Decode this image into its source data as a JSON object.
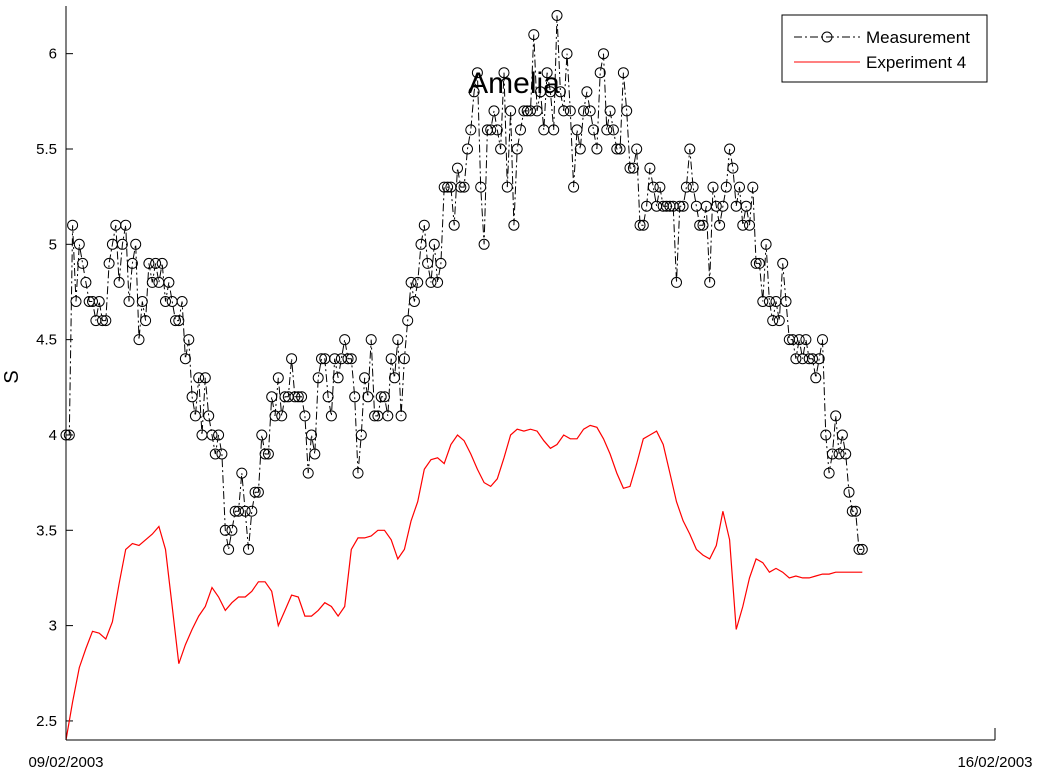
{
  "chart_data": {
    "type": "line",
    "title": "Amelia",
    "xlabel": "",
    "ylabel": "S",
    "x_tick_labels": [
      "09/02/2003",
      "16/02/2003"
    ],
    "xlim": [
      0,
      7
    ],
    "ylim": [
      2.4,
      6.25
    ],
    "y_ticks": [
      2.5,
      3,
      3.5,
      4,
      4.5,
      5,
      5.5,
      6
    ],
    "grid": false,
    "legend_position": "top-right",
    "colors": {
      "measurement": "#000000",
      "experiment": "#ff0000",
      "background": "#ffffff"
    },
    "series": [
      {
        "name": "Measurement",
        "style": "dash-dot with circle markers",
        "x": [
          0.0,
          0.025,
          0.05,
          0.075,
          0.1,
          0.125,
          0.15,
          0.175,
          0.2,
          0.225,
          0.25,
          0.275,
          0.3,
          0.325,
          0.35,
          0.375,
          0.4,
          0.425,
          0.45,
          0.475,
          0.5,
          0.525,
          0.55,
          0.575,
          0.6,
          0.625,
          0.65,
          0.675,
          0.7,
          0.725,
          0.75,
          0.775,
          0.8,
          0.825,
          0.85,
          0.875,
          0.9,
          0.925,
          0.95,
          0.975,
          1.0,
          1.025,
          1.05,
          1.075,
          1.1,
          1.125,
          1.15,
          1.175,
          1.2,
          1.225,
          1.25,
          1.275,
          1.3,
          1.325,
          1.35,
          1.375,
          1.4,
          1.425,
          1.45,
          1.475,
          1.5,
          1.525,
          1.55,
          1.575,
          1.6,
          1.625,
          1.65,
          1.675,
          1.7,
          1.725,
          1.75,
          1.775,
          1.8,
          1.825,
          1.85,
          1.875,
          1.9,
          1.925,
          1.95,
          1.975,
          2.0,
          2.025,
          2.05,
          2.075,
          2.1,
          2.125,
          2.15,
          2.175,
          2.2,
          2.225,
          2.25,
          2.275,
          2.3,
          2.325,
          2.35,
          2.375,
          2.4,
          2.425,
          2.45,
          2.475,
          2.5,
          2.525,
          2.55,
          2.575,
          2.6,
          2.625,
          2.65,
          2.675,
          2.7,
          2.725,
          2.75,
          2.775,
          2.8,
          2.825,
          2.85,
          2.875,
          2.9,
          2.925,
          2.95,
          2.975,
          3.0,
          3.025,
          3.05,
          3.075,
          3.1,
          3.125,
          3.15,
          3.175,
          3.2,
          3.225,
          3.25,
          3.275,
          3.3,
          3.325,
          3.35,
          3.375,
          3.4,
          3.425,
          3.45,
          3.475,
          3.5,
          3.525,
          3.55,
          3.575,
          3.6,
          3.625,
          3.65,
          3.675,
          3.7,
          3.725,
          3.75,
          3.775,
          3.8,
          3.825,
          3.85,
          3.875,
          3.9,
          3.925,
          3.95,
          3.975,
          4.0,
          4.025,
          4.05,
          4.075,
          4.1,
          4.125,
          4.15,
          4.175,
          4.2,
          4.225,
          4.25,
          4.275,
          4.3,
          4.325,
          4.35,
          4.375,
          4.4,
          4.425,
          4.45,
          4.475,
          4.5,
          4.525,
          4.55,
          4.575,
          4.6,
          4.625,
          4.65,
          4.675,
          4.7,
          4.725,
          4.75,
          4.775,
          4.8,
          4.825,
          4.85,
          4.875,
          4.9,
          4.925,
          4.95,
          4.975,
          5.0,
          5.025,
          5.05,
          5.075,
          5.1,
          5.125,
          5.15,
          5.175,
          5.2,
          5.225,
          5.25,
          5.275,
          5.3,
          5.325,
          5.35,
          5.375,
          5.4,
          5.425,
          5.45,
          5.475,
          5.5,
          5.525,
          5.55,
          5.575,
          5.6,
          5.625,
          5.65,
          5.675,
          5.7,
          5.725,
          5.75,
          5.775,
          5.8,
          5.825,
          5.85,
          5.875,
          5.9,
          5.925,
          5.95,
          5.975,
          6.0
        ],
        "values": [
          4.0,
          4.0,
          5.1,
          4.7,
          5.0,
          4.9,
          4.8,
          4.7,
          4.7,
          4.6,
          4.7,
          4.6,
          4.6,
          4.9,
          5.0,
          5.1,
          4.8,
          5.0,
          5.1,
          4.7,
          4.9,
          5.0,
          4.5,
          4.7,
          4.6,
          4.9,
          4.8,
          4.9,
          4.8,
          4.9,
          4.7,
          4.8,
          4.7,
          4.6,
          4.6,
          4.7,
          4.4,
          4.5,
          4.2,
          4.1,
          4.3,
          4.0,
          4.3,
          4.1,
          4.0,
          3.9,
          4.0,
          3.9,
          3.5,
          3.4,
          3.5,
          3.6,
          3.6,
          3.8,
          3.6,
          3.4,
          3.6,
          3.7,
          3.7,
          4.0,
          3.9,
          3.9,
          4.2,
          4.1,
          4.3,
          4.1,
          4.2,
          4.2,
          4.4,
          4.2,
          4.2,
          4.2,
          4.1,
          3.8,
          4.0,
          3.9,
          4.3,
          4.4,
          4.4,
          4.2,
          4.1,
          4.4,
          4.3,
          4.4,
          4.5,
          4.4,
          4.4,
          4.2,
          3.8,
          4.0,
          4.3,
          4.2,
          4.5,
          4.1,
          4.1,
          4.2,
          4.2,
          4.1,
          4.4,
          4.3,
          4.5,
          4.1,
          4.4,
          4.6,
          4.8,
          4.7,
          4.8,
          5.0,
          5.1,
          4.9,
          4.8,
          5.0,
          4.8,
          4.9,
          5.3,
          5.3,
          5.3,
          5.1,
          5.4,
          5.3,
          5.3,
          5.5,
          5.6,
          5.8,
          5.9,
          5.3,
          5.0,
          5.6,
          5.6,
          5.7,
          5.6,
          5.5,
          5.9,
          5.3,
          5.7,
          5.1,
          5.5,
          5.6,
          5.7,
          5.7,
          5.7,
          6.1,
          5.7,
          5.8,
          5.6,
          5.9,
          5.8,
          5.6,
          6.2,
          5.8,
          5.7,
          6.0,
          5.7,
          5.3,
          5.6,
          5.5,
          5.7,
          5.8,
          5.7,
          5.6,
          5.5,
          5.9,
          6.0,
          5.6,
          5.7,
          5.6,
          5.5,
          5.5,
          5.9,
          5.7,
          5.4,
          5.4,
          5.5,
          5.1,
          5.1,
          5.2,
          5.4,
          5.3,
          5.2,
          5.3,
          5.2,
          5.2,
          5.2,
          5.2,
          4.8,
          5.2,
          5.2,
          5.3,
          5.5,
          5.3,
          5.2,
          5.1,
          5.1,
          5.2,
          4.8,
          5.3,
          5.2,
          5.1,
          5.2,
          5.3,
          5.5,
          5.4,
          5.2,
          5.3,
          5.1,
          5.2,
          5.1,
          5.3,
          4.9,
          4.9,
          4.7,
          5.0,
          4.7,
          4.6,
          4.7,
          4.6,
          4.9,
          4.7,
          4.5,
          4.5,
          4.4,
          4.5,
          4.4,
          4.5,
          4.4,
          4.4,
          4.3,
          4.4,
          4.5,
          4.0,
          3.8,
          3.9,
          4.1,
          3.9,
          4.0,
          3.9,
          3.7,
          3.6,
          3.6,
          3.4,
          3.4
        ]
      },
      {
        "name": "Experiment 4",
        "style": "solid",
        "x": [
          0.0,
          0.05,
          0.1,
          0.15,
          0.2,
          0.25,
          0.3,
          0.35,
          0.4,
          0.45,
          0.5,
          0.55,
          0.6,
          0.65,
          0.7,
          0.75,
          0.8,
          0.85,
          0.9,
          0.95,
          1.0,
          1.05,
          1.1,
          1.15,
          1.2,
          1.25,
          1.3,
          1.35,
          1.4,
          1.45,
          1.5,
          1.55,
          1.6,
          1.65,
          1.7,
          1.75,
          1.8,
          1.85,
          1.9,
          1.95,
          2.0,
          2.05,
          2.1,
          2.15,
          2.2,
          2.25,
          2.3,
          2.35,
          2.4,
          2.45,
          2.5,
          2.55,
          2.6,
          2.65,
          2.7,
          2.75,
          2.8,
          2.85,
          2.9,
          2.95,
          3.0,
          3.05,
          3.1,
          3.15,
          3.2,
          3.25,
          3.3,
          3.35,
          3.4,
          3.45,
          3.5,
          3.55,
          3.6,
          3.65,
          3.7,
          3.75,
          3.8,
          3.85,
          3.9,
          3.95,
          4.0,
          4.05,
          4.1,
          4.15,
          4.2,
          4.25,
          4.3,
          4.35,
          4.4,
          4.45,
          4.5,
          4.55,
          4.6,
          4.65,
          4.7,
          4.75,
          4.8,
          4.85,
          4.9,
          4.95,
          5.0,
          5.05,
          5.1,
          5.15,
          5.2,
          5.25,
          5.3,
          5.35,
          5.4,
          5.45,
          5.5,
          5.55,
          5.6,
          5.65,
          5.7,
          5.75,
          5.8,
          5.85,
          5.9,
          5.95,
          6.0
        ],
        "values": [
          2.4,
          2.6,
          2.78,
          2.88,
          2.97,
          2.96,
          2.93,
          3.02,
          3.22,
          3.4,
          3.43,
          3.42,
          3.45,
          3.48,
          3.52,
          3.4,
          3.1,
          2.8,
          2.9,
          2.98,
          3.05,
          3.1,
          3.2,
          3.15,
          3.08,
          3.12,
          3.15,
          3.15,
          3.18,
          3.23,
          3.23,
          3.18,
          3.0,
          3.08,
          3.16,
          3.15,
          3.05,
          3.05,
          3.08,
          3.12,
          3.1,
          3.05,
          3.1,
          3.4,
          3.46,
          3.46,
          3.47,
          3.5,
          3.5,
          3.45,
          3.35,
          3.4,
          3.55,
          3.65,
          3.82,
          3.87,
          3.88,
          3.85,
          3.95,
          4.0,
          3.97,
          3.9,
          3.82,
          3.75,
          3.73,
          3.77,
          3.88,
          4.0,
          4.03,
          4.02,
          4.03,
          4.02,
          3.97,
          3.93,
          3.95,
          4.0,
          3.98,
          3.98,
          4.03,
          4.05,
          4.04,
          3.98,
          3.9,
          3.8,
          3.72,
          3.73,
          3.85,
          3.98,
          4.0,
          4.02,
          3.95,
          3.8,
          3.65,
          3.55,
          3.48,
          3.4,
          3.37,
          3.35,
          3.42,
          3.6,
          3.45,
          2.98,
          3.1,
          3.25,
          3.35,
          3.33,
          3.28,
          3.3,
          3.28,
          3.25,
          3.26,
          3.25,
          3.25,
          3.26,
          3.27,
          3.27,
          3.28,
          3.28,
          3.28,
          3.28,
          3.28
        ]
      }
    ]
  }
}
